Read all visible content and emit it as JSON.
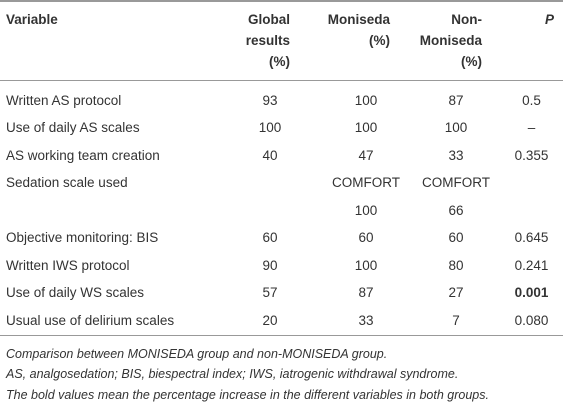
{
  "table": {
    "header": [
      "Variable",
      "Global results (%)",
      "Moniseda (%)",
      "Non-Moniseda (%)",
      "P"
    ],
    "rows": [
      [
        "Written AS protocol",
        "93",
        "100",
        "87",
        "0.5"
      ],
      [
        "Use of daily AS scales",
        "100",
        "100",
        "100",
        "–"
      ],
      [
        "AS working team creation",
        "40",
        "47",
        "33",
        "0.355"
      ],
      [
        "Sedation scale used",
        null,
        "COMFORT",
        "COMFORT",
        null
      ],
      [
        null,
        null,
        "100",
        "66",
        null
      ],
      [
        "Objective monitoring: BIS",
        "60",
        "60",
        "60",
        "0.645"
      ],
      [
        "Written IWS protocol",
        "90",
        "100",
        "80",
        "0.241"
      ],
      [
        "Use of daily WS scales",
        "57",
        "87",
        "27",
        "0.001"
      ],
      [
        "Usual use of delirium scales",
        "20",
        "33",
        "7",
        "0.080"
      ]
    ],
    "bold_cell": {
      "row": 7,
      "col": 4
    }
  },
  "footnotes": [
    "Comparison between MONISEDA group and non-MONISEDA group.",
    "AS, analgosedation; BIS, biespectral index; IWS, iatrogenic withdrawal syndrome.",
    "The bold values mean the percentage increase in the different variables in both groups."
  ]
}
